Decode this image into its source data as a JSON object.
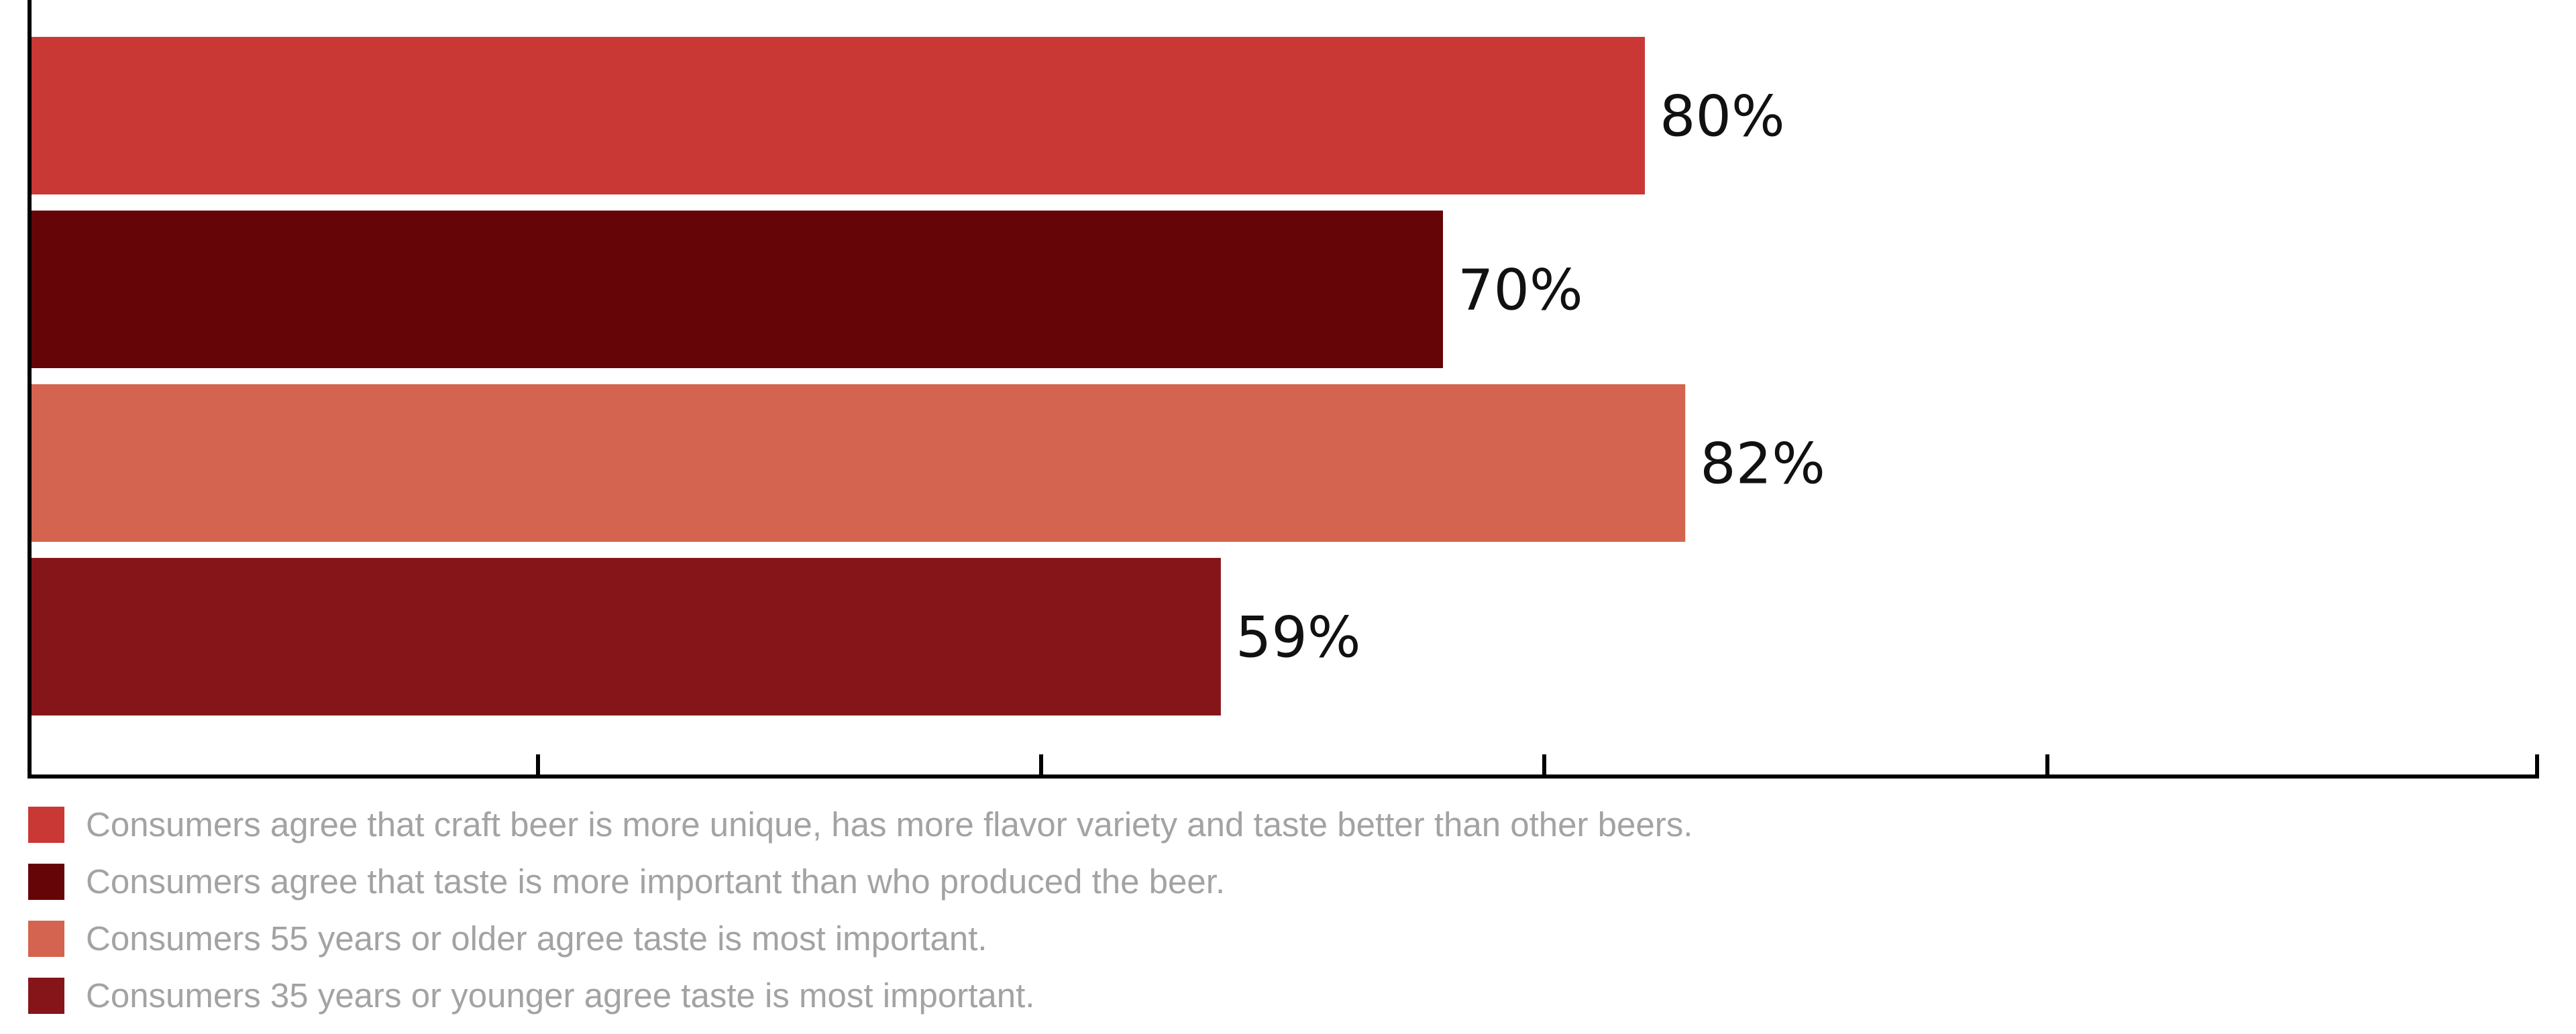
{
  "chart_data": {
    "type": "bar",
    "orientation": "horizontal",
    "title": "",
    "xlabel": "",
    "ylabel": "",
    "xlim": [
      0,
      100
    ],
    "grid": false,
    "legend_position": "bottom-left",
    "value_suffix": "%",
    "categories": [
      "Consumers agree that craft beer is more unique, has more flavor variety and taste better than other beers.",
      "Consumers agree that taste is more important than who produced the beer.",
      "Consumers 55 years or older agree taste is most important.",
      "Consumers 35 years or younger agree taste is most important."
    ],
    "values": [
      80,
      70,
      82,
      59
    ],
    "colors": [
      "#c93834",
      "#650508",
      "#d4634f",
      "#861519"
    ]
  }
}
